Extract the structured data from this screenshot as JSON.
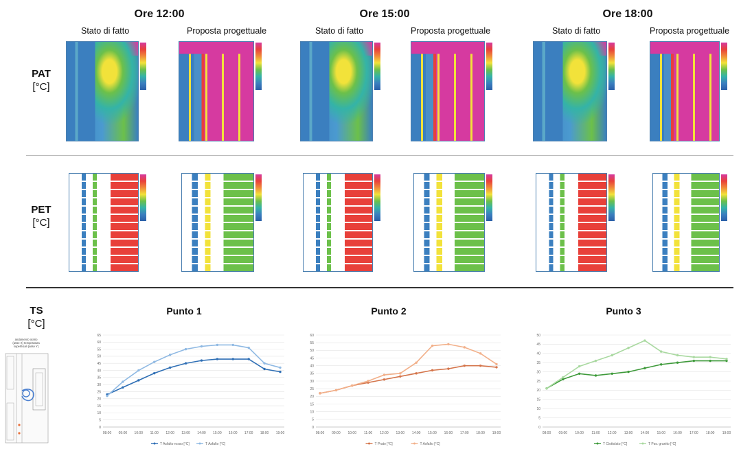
{
  "hours": [
    "Ore 12:00",
    "Ore 15:00",
    "Ore 18:00"
  ],
  "scenarios": [
    "Stato di fatto",
    "Proposta progettuale"
  ],
  "rows": {
    "pat": {
      "name": "PAT",
      "unit": "[°C]"
    },
    "pet": {
      "name": "PET",
      "unit": "[°C]"
    },
    "ts": {
      "name": "TS",
      "unit": "[°C]"
    }
  },
  "colors": {
    "map_blue": "#3b7fbf",
    "map_green": "#6cc04a",
    "map_yellow": "#f2e23a",
    "map_red": "#e8403a",
    "map_magenta": "#d63aa0",
    "punto1": [
      "#2f6fb5",
      "#8fb9e3"
    ],
    "punto2": [
      "#d4744a",
      "#f2b08a"
    ],
    "punto3": [
      "#3e9a3a",
      "#a9d9a0"
    ]
  },
  "chart_data": [
    {
      "type": "line",
      "title": "Punto 1",
      "x": [
        "08:00",
        "09:00",
        "10:00",
        "11:00",
        "12:00",
        "13:00",
        "14:00",
        "15:00",
        "16:00",
        "17:00",
        "18:00",
        "19:00"
      ],
      "ylim": [
        0,
        65
      ],
      "yticks": [
        0,
        5,
        10,
        15,
        20,
        25,
        30,
        35,
        40,
        45,
        50,
        55,
        60,
        65
      ],
      "series": [
        {
          "name": "T Asfalto rosso [°C]",
          "values": [
            23,
            28,
            33,
            38,
            42,
            45,
            47,
            48,
            48,
            48,
            41,
            39
          ]
        },
        {
          "name": "T Asfalto [°C]",
          "values": [
            22,
            32,
            40,
            46,
            51,
            55,
            57,
            58,
            58,
            56,
            45,
            42
          ]
        }
      ]
    },
    {
      "type": "line",
      "title": "Punto 2",
      "x": [
        "08:00",
        "09:00",
        "10:00",
        "11:00",
        "12:00",
        "13:00",
        "14:00",
        "15:00",
        "16:00",
        "17:00",
        "18:00",
        "19:00"
      ],
      "ylim": [
        0,
        60
      ],
      "yticks": [
        0,
        5,
        10,
        15,
        20,
        25,
        30,
        35,
        40,
        45,
        50,
        55,
        60
      ],
      "series": [
        {
          "name": "T Prato [°C]",
          "values": [
            22,
            24,
            27,
            29,
            31,
            33,
            35,
            37,
            38,
            40,
            40,
            39
          ]
        },
        {
          "name": "T Asfalto [°C]",
          "values": [
            22,
            24,
            27,
            30,
            34,
            35,
            42,
            53,
            54,
            52,
            48,
            41
          ]
        }
      ]
    },
    {
      "type": "line",
      "title": "Punto 3",
      "x": [
        "08:00",
        "09:00",
        "10:00",
        "11:00",
        "12:00",
        "13:00",
        "14:00",
        "15:00",
        "16:00",
        "17:00",
        "18:00",
        "19:00"
      ],
      "ylim": [
        0,
        50
      ],
      "yticks": [
        0,
        5,
        10,
        15,
        20,
        25,
        30,
        35,
        40,
        45,
        50
      ],
      "series": [
        {
          "name": "T Ciottolato [°C]",
          "values": [
            21,
            26,
            29,
            28,
            29,
            30,
            32,
            34,
            35,
            36,
            36,
            36
          ]
        },
        {
          "name": "T Pav. granito [°C]",
          "values": [
            21,
            27,
            33,
            36,
            39,
            43,
            47,
            41,
            39,
            38,
            38,
            37
          ]
        }
      ]
    }
  ],
  "small_map": {
    "caption": [
      "andamento orario",
      "(asse X) temperatura",
      "superficiali (asse Y)"
    ]
  }
}
